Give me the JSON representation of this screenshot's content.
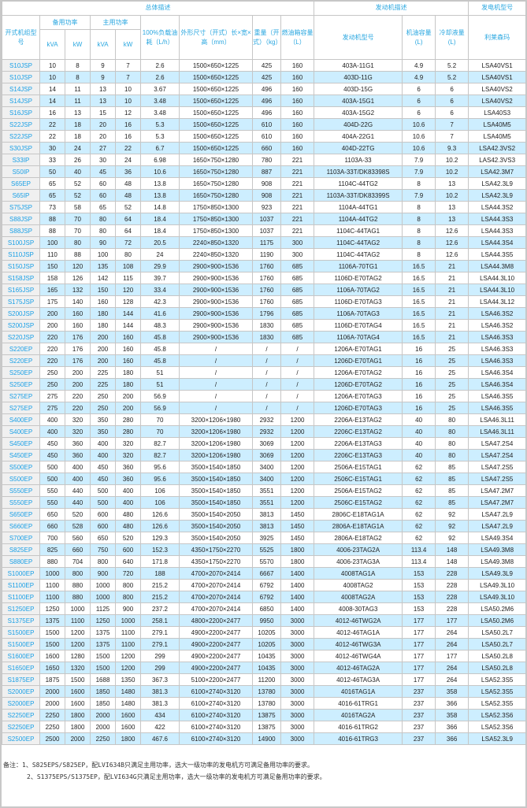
{
  "header": {
    "group_overall": "总体描述",
    "group_engine": "发动机描述",
    "group_alternator": "发电机型号",
    "model": "开式机组型号",
    "standby_power": "备用功率",
    "prime_power": "主用功率",
    "kva": "kVA",
    "kw": "kW",
    "fuel_consumption": "100%负载油耗（L/h）",
    "dimensions": "外形尺寸（开式）长×宽×高（mm）",
    "weight": "重量（开式）（kg）",
    "fuel_tank": "燃油箱容量（L）",
    "engine_model": "发动机型号",
    "oil_capacity": "机油容量(L)",
    "coolant": "冷却液量(L)",
    "leroy_somer": "利莱森玛"
  },
  "rows": [
    [
      "S10JSP",
      "10",
      "8",
      "9",
      "7",
      "2.6",
      "1500×650×1225",
      "425",
      "160",
      "403A-11G1",
      "4.9",
      "5.2",
      "LSA40VS1"
    ],
    [
      "S10JSP",
      "10",
      "8",
      "9",
      "7",
      "2.6",
      "1500×650×1225",
      "425",
      "160",
      "403D-11G",
      "4.9",
      "5.2",
      "LSA40VS1"
    ],
    [
      "S14JSP",
      "14",
      "11",
      "13",
      "10",
      "3.67",
      "1500×650×1225",
      "496",
      "160",
      "403D-15G",
      "6",
      "6",
      "LSA40VS2"
    ],
    [
      "S14JSP",
      "14",
      "11",
      "13",
      "10",
      "3.48",
      "1500×650×1225",
      "496",
      "160",
      "403A-15G1",
      "6",
      "6",
      "LSA40VS2"
    ],
    [
      "S16JSP",
      "16",
      "13",
      "15",
      "12",
      "3.48",
      "1500×650×1225",
      "496",
      "160",
      "403A-15G2",
      "6",
      "6",
      "LSA40S3"
    ],
    [
      "S22JSP",
      "22",
      "18",
      "20",
      "16",
      "5.3",
      "1500×650×1225",
      "610",
      "160",
      "404D-22G",
      "10.6",
      "7",
      "LSA40M5"
    ],
    [
      "S22JSP",
      "22",
      "18",
      "20",
      "16",
      "5.3",
      "1500×650×1225",
      "610",
      "160",
      "404A-22G1",
      "10.6",
      "7",
      "LSA40M5"
    ],
    [
      "S30JSP",
      "30",
      "24",
      "27",
      "22",
      "6.7",
      "1500×650×1225",
      "660",
      "160",
      "404D-22TG",
      "10.6",
      "9.3",
      "LSA42.3VS2"
    ],
    [
      "S33IP",
      "33",
      "26",
      "30",
      "24",
      "6.98",
      "1650×750×1280",
      "780",
      "221",
      "1103A-33",
      "7.9",
      "10.2",
      "LAS42.3VS3"
    ],
    [
      "S50IP",
      "50",
      "40",
      "45",
      "36",
      "10.6",
      "1650×750×1280",
      "887",
      "221",
      "1103A-33T/DK83398S",
      "7.9",
      "10.2",
      "LSA42.3M7"
    ],
    [
      "S65EP",
      "65",
      "52",
      "60",
      "48",
      "13.8",
      "1650×750×1280",
      "908",
      "221",
      "1104C-44TG2",
      "8",
      "13",
      "LSA42.3L9"
    ],
    [
      "S65IP",
      "65",
      "52",
      "60",
      "48",
      "13.8",
      "1650×750×1280",
      "908",
      "221",
      "1103A-33T/DK83399S",
      "7.9",
      "10.2",
      "LSA42.3L9"
    ],
    [
      "S75JSP",
      "73",
      "58",
      "65",
      "52",
      "14.8",
      "1750×850×1300",
      "923",
      "221",
      "1104A-44TG1",
      "8",
      "13",
      "LSA44.3S2"
    ],
    [
      "S88JSP",
      "88",
      "70",
      "80",
      "64",
      "18.4",
      "1750×850×1300",
      "1037",
      "221",
      "1104A-44TG2",
      "8",
      "13",
      "LSA44.3S3"
    ],
    [
      "S88JSP",
      "88",
      "70",
      "80",
      "64",
      "18.4",
      "1750×850×1300",
      "1037",
      "221",
      "1104C-44TAG1",
      "8",
      "12.6",
      "LSA44.3S3"
    ],
    [
      "S100JSP",
      "100",
      "80",
      "90",
      "72",
      "20.5",
      "2240×850×1320",
      "1175",
      "300",
      "1104C-44TAG2",
      "8",
      "12.6",
      "LSA44.3S4"
    ],
    [
      "S110JSP",
      "110",
      "88",
      "100",
      "80",
      "24",
      "2240×850×1320",
      "1190",
      "300",
      "1104C-44TAG2",
      "8",
      "12.6",
      "LSA44.3S5"
    ],
    [
      "S150JSP",
      "150",
      "120",
      "135",
      "108",
      "29.9",
      "2900×900×1536",
      "1760",
      "685",
      "1106A-70TG1",
      "16.5",
      "21",
      "LSA44.3M8"
    ],
    [
      "S158JSP",
      "158",
      "126",
      "142",
      "115",
      "39.7",
      "2900×900×1536",
      "1760",
      "685",
      "1106D-E70TAG2",
      "16.5",
      "21",
      "LSA44.3L10"
    ],
    [
      "S165JSP",
      "165",
      "132",
      "150",
      "120",
      "33.4",
      "2900×900×1536",
      "1760",
      "685",
      "1106A-70TAG2",
      "16.5",
      "21",
      "LSA44.3L10"
    ],
    [
      "S175JSP",
      "175",
      "140",
      "160",
      "128",
      "42.3",
      "2900×900×1536",
      "1760",
      "685",
      "1106D-E70TAG3",
      "16.5",
      "21",
      "LSA44.3L12"
    ],
    [
      "S200JSP",
      "200",
      "160",
      "180",
      "144",
      "41.6",
      "2900×900×1536",
      "1796",
      "685",
      "1106A-70TAG3",
      "16.5",
      "21",
      "LSA46.3S2"
    ],
    [
      "S200JSP",
      "200",
      "160",
      "180",
      "144",
      "48.3",
      "2900×900×1536",
      "1830",
      "685",
      "1106D-E70TAG4",
      "16.5",
      "21",
      "LSA46.3S2"
    ],
    [
      "S220JSP",
      "220",
      "176",
      "200",
      "160",
      "45.8",
      "2900×900×1536",
      "1830",
      "685",
      "1106A-70TAG4",
      "16.5",
      "21",
      "LSA46.3S3"
    ],
    [
      "S220EP",
      "220",
      "176",
      "200",
      "160",
      "45.8",
      "/",
      "/",
      "/",
      "1206A-E70TAG1",
      "16",
      "25",
      "LSA46.3S3"
    ],
    [
      "S220EP",
      "220",
      "176",
      "200",
      "160",
      "45.8",
      "/",
      "/",
      "/",
      "1206D-E70TAG1",
      "16",
      "25",
      "LSA46.3S3"
    ],
    [
      "S250EP",
      "250",
      "200",
      "225",
      "180",
      "51",
      "/",
      "/",
      "/",
      "1206A-E70TAG2",
      "16",
      "25",
      "LSA46.3S4"
    ],
    [
      "S250EP",
      "250",
      "200",
      "225",
      "180",
      "51",
      "/",
      "/",
      "/",
      "1206D-E70TAG2",
      "16",
      "25",
      "LSA46.3S4"
    ],
    [
      "S275EP",
      "275",
      "220",
      "250",
      "200",
      "56.9",
      "/",
      "/",
      "/",
      "1206A-E70TAG3",
      "16",
      "25",
      "LSA46.3S5"
    ],
    [
      "S275EP",
      "275",
      "220",
      "250",
      "200",
      "56.9",
      "/",
      "/",
      "/",
      "1206D-E70TAG3",
      "16",
      "25",
      "LSA46.3S5"
    ],
    [
      "S400EP",
      "400",
      "320",
      "350",
      "280",
      "70",
      "3200×1206×1980",
      "2932",
      "1200",
      "2206A-E13TAG2",
      "40",
      "80",
      "LSA46.3L11"
    ],
    [
      "S400EP",
      "400",
      "320",
      "350",
      "280",
      "70",
      "3200×1206×1980",
      "2932",
      "1200",
      "2206C-E13TAG2",
      "40",
      "80",
      "LSA46.3L11"
    ],
    [
      "S450EP",
      "450",
      "360",
      "400",
      "320",
      "82.7",
      "3200×1206×1980",
      "3069",
      "1200",
      "2206A-E13TAG3",
      "40",
      "80",
      "LSA47.2S4"
    ],
    [
      "S450EP",
      "450",
      "360",
      "400",
      "320",
      "82.7",
      "3200×1206×1980",
      "3069",
      "1200",
      "2206C-E13TAG3",
      "40",
      "80",
      "LSA47.2S4"
    ],
    [
      "S500EP",
      "500",
      "400",
      "450",
      "360",
      "95.6",
      "3500×1540×1850",
      "3400",
      "1200",
      "2506A-E15TAG1",
      "62",
      "85",
      "LSA47.2S5"
    ],
    [
      "S500EP",
      "500",
      "400",
      "450",
      "360",
      "95.6",
      "3500×1540×1850",
      "3400",
      "1200",
      "2506C-E15TAG1",
      "62",
      "85",
      "LSA47.2S5"
    ],
    [
      "S550EP",
      "550",
      "440",
      "500",
      "400",
      "106",
      "3500×1540×1850",
      "3551",
      "1200",
      "2506A-E15TAG2",
      "62",
      "85",
      "LSA47.2M7"
    ],
    [
      "S550EP",
      "550",
      "440",
      "500",
      "400",
      "106",
      "3500×1540×1850",
      "3551",
      "1200",
      "2506C-E15TAG2",
      "62",
      "85",
      "LSA47.2M7"
    ],
    [
      "S650EP",
      "650",
      "520",
      "600",
      "480",
      "126.6",
      "3500×1540×2050",
      "3813",
      "1450",
      "2806C-E18TAG1A",
      "62",
      "92",
      "LSA47.2L9"
    ],
    [
      "S660EP",
      "660",
      "528",
      "600",
      "480",
      "126.6",
      "3500×1540×2050",
      "3813",
      "1450",
      "2806A-E18TAG1A",
      "62",
      "92",
      "LSA47.2L9"
    ],
    [
      "S700EP",
      "700",
      "560",
      "650",
      "520",
      "129.3",
      "3500×1540×2050",
      "3925",
      "1450",
      "2806A-E18TAG2",
      "62",
      "92",
      "LSA49.3S4"
    ],
    [
      "S825EP",
      "825",
      "660",
      "750",
      "600",
      "152.3",
      "4350×1750×2270",
      "5525",
      "1800",
      "4006-23TAG2A",
      "113.4",
      "148",
      "LSA49.3M8"
    ],
    [
      "S880EP",
      "880",
      "704",
      "800",
      "640",
      "171.8",
      "4350×1750×2270",
      "5570",
      "1800",
      "4006-23TAG3A",
      "113.4",
      "148",
      "LSA49.3M8"
    ],
    [
      "S1000EP",
      "1000",
      "800",
      "900",
      "720",
      "188",
      "4700×2070×2414",
      "6667",
      "1400",
      "4008TAG1A",
      "153",
      "228",
      "LSA49.3L9"
    ],
    [
      "S1100EP",
      "1100",
      "880",
      "1000",
      "800",
      "215.2",
      "4700×2070×2414",
      "6792",
      "1400",
      "4008TAG2",
      "153",
      "228",
      "LSA49.3L10"
    ],
    [
      "S1100EP",
      "1100",
      "880",
      "1000",
      "800",
      "215.2",
      "4700×2070×2414",
      "6792",
      "1400",
      "4008TAG2A",
      "153",
      "228",
      "LSA49.3L10"
    ],
    [
      "S1250EP",
      "1250",
      "1000",
      "1125",
      "900",
      "237.2",
      "4700×2070×2414",
      "6850",
      "1400",
      "4008-30TAG3",
      "153",
      "228",
      "LSA50.2M6"
    ],
    [
      "S1375EP",
      "1375",
      "1100",
      "1250",
      "1000",
      "258.1",
      "4800×2200×2477",
      "9950",
      "3000",
      "4012-46TWG2A",
      "177",
      "177",
      "LSA50.2M6"
    ],
    [
      "S1500EP",
      "1500",
      "1200",
      "1375",
      "1100",
      "279.1",
      "4900×2200×2477",
      "10205",
      "3000",
      "4012-46TAG1A",
      "177",
      "264",
      "LSA50.2L7"
    ],
    [
      "S1500EP",
      "1500",
      "1200",
      "1375",
      "1100",
      "279.1",
      "4900×2200×2477",
      "10205",
      "3000",
      "4012-46TWG3A",
      "177",
      "264",
      "LSA50.2L7"
    ],
    [
      "S1600EP",
      "1600",
      "1280",
      "1500",
      "1200",
      "299",
      "4900×2200×2477",
      "10435",
      "3000",
      "4012-46TWG4A",
      "177",
      "177",
      "LSA50.2L8"
    ],
    [
      "S1650EP",
      "1650",
      "1320",
      "1500",
      "1200",
      "299",
      "4900×2200×2477",
      "10435",
      "3000",
      "4012-46TAG2A",
      "177",
      "264",
      "LSA50.2L8"
    ],
    [
      "S1875EP",
      "1875",
      "1500",
      "1688",
      "1350",
      "367.3",
      "5100×2200×2477",
      "11200",
      "3000",
      "4012-46TAG3A",
      "177",
      "264",
      "LSA52.3S5"
    ],
    [
      "S2000EP",
      "2000",
      "1600",
      "1850",
      "1480",
      "381.3",
      "6100×2740×3120",
      "13780",
      "3000",
      "4016TAG1A",
      "237",
      "358",
      "LSA52.3S5"
    ],
    [
      "S2000EP",
      "2000",
      "1600",
      "1850",
      "1480",
      "381.3",
      "6100×2740×3120",
      "13780",
      "3000",
      "4016-61TRG1",
      "237",
      "366",
      "LSA52.3S5"
    ],
    [
      "S2250EP",
      "2250",
      "1800",
      "2000",
      "1600",
      "434",
      "6100×2740×3120",
      "13875",
      "3000",
      "4016TAG2A",
      "237",
      "358",
      "LSA52.3S6"
    ],
    [
      "S2250EP",
      "2250",
      "1800",
      "2000",
      "1600",
      "422",
      "6100×2740×3120",
      "13875",
      "3000",
      "4016-61TRG2",
      "237",
      "366",
      "LSA52.3S6"
    ],
    [
      "S2500EP",
      "2500",
      "2000",
      "2250",
      "1800",
      "467.6",
      "6100×2740×3120",
      "14900",
      "3000",
      "4016-61TRG3",
      "237",
      "366",
      "LSA52.3L9"
    ]
  ],
  "notes": {
    "line1": "备注：1、S825EPS/S825EP，配LVI634B只满足主用功率，选大一级功率的发电机方可满足备用功率的要求。",
    "line2": "2、S1375EPS/S1375EP，配LVI634G只满足主用功率，选大一级功率的发电机方可满足备用功率的要求。"
  },
  "colors": {
    "header_text": "#2aa7e0",
    "model_link": "#1aa0e6",
    "row_stripe": "#cdeeff",
    "model_cell_bg": "#f0f0f0",
    "border": "#c6c6c6"
  }
}
